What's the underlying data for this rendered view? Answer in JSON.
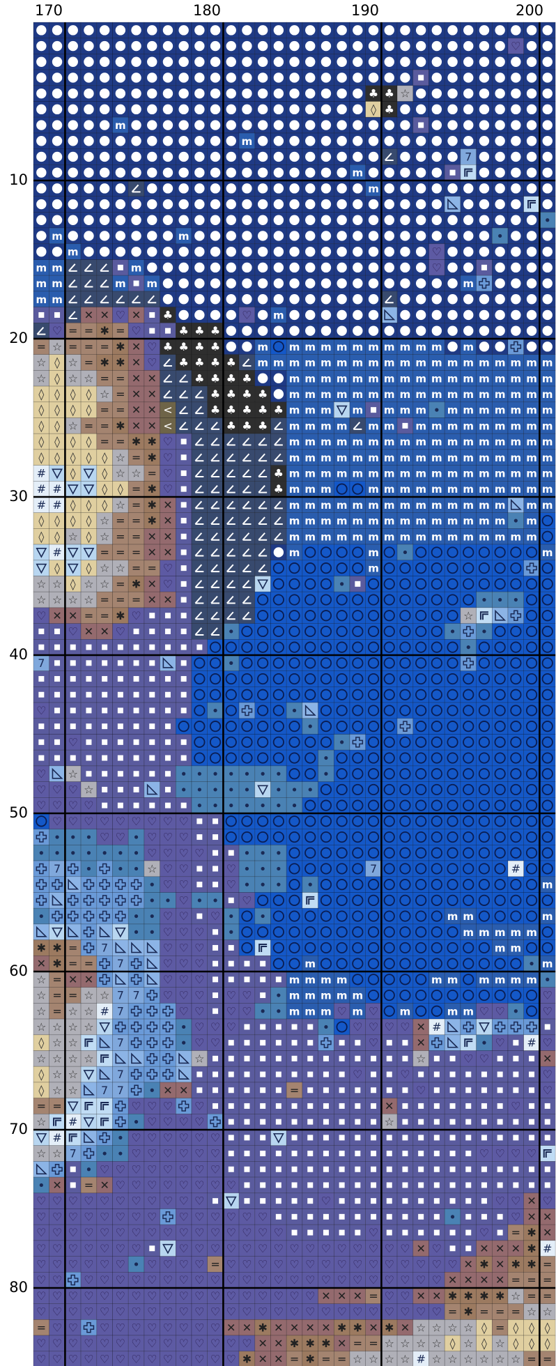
{
  "pattern": {
    "col_start": 168,
    "col_end": 200,
    "row_start": 1,
    "row_end": 86,
    "x_axis_labels": [
      "170",
      "180",
      "190",
      "200"
    ],
    "y_axis_labels": [
      "10",
      "20",
      "30",
      "40",
      "50",
      "60",
      "70",
      "80"
    ],
    "palette": {
      "W": {
        "symbol": "circle-white",
        "bg": "#1f3a85",
        "fg": "#ffffff"
      },
      "M": {
        "symbol": "m",
        "bg": "#2a5dae",
        "fg": "#ffffff"
      },
      "O": {
        "symbol": "circle-outline",
        "bg": "#1458c8",
        "fg": "#0a1d52"
      },
      "Q": {
        "symbol": "dot-square",
        "bg": "#5a5b9e",
        "fg": "#ffffff"
      },
      "H": {
        "symbol": "heart",
        "bg": "#5d5aa3",
        "fg": "#2b1f52"
      },
      "L": {
        "symbol": "hook",
        "bg": "#384a6e",
        "fg": "#ffffff"
      },
      "C": {
        "symbol": "club",
        "bg": "#2e2e2e",
        "fg": "#ffffff"
      },
      "S": {
        "symbol": "star",
        "bg": "#b0b0b8",
        "fg": "#333333"
      },
      "D": {
        "symbol": "diamond",
        "bg": "#e0cfa0",
        "fg": "#333333"
      },
      "E": {
        "symbol": "equals",
        "bg": "#a48470",
        "fg": "#222222"
      },
      "A": {
        "symbol": "asterisk",
        "bg": "#9c7a60",
        "fg": "#222222"
      },
      "X": {
        "symbol": "x",
        "bg": "#946a6e",
        "fg": "#222222"
      },
      "T": {
        "symbol": "triangle-down",
        "bg": "#b8d6f0",
        "fg": "#1a2a55"
      },
      "P": {
        "symbol": "plus-outline",
        "bg": "#6a9ad8",
        "fg": "#1a2a55"
      },
      "R": {
        "symbol": "triangle",
        "bg": "#8cb4e6",
        "fg": "#1a2a55"
      },
      "K": {
        "symbol": "seven",
        "bg": "#80a8dc",
        "fg": "#1a2a55"
      },
      "G": {
        "symbol": "small-dot",
        "bg": "#4a82b4",
        "fg": "#1a2a55"
      },
      "F": {
        "symbol": "corner",
        "bg": "#c0dcf4",
        "fg": "#1a2a55"
      },
      "N": {
        "symbol": "hash",
        "bg": "#e4eef8",
        "fg": "#1a2a55"
      },
      "V": {
        "symbol": "lt",
        "bg": "#6e6448",
        "fg": "#ffffff"
      }
    },
    "rows": [
      "WWWWWWWWWWWWWWWWWWWWWWWWWWWWWWWWW",
      "WWWWWWWWWWWWWWWWWWWWWWWWWWWWWWHWW",
      "WWWWWWWWWWWWWWWWWWWWWWWWWWWWWWWWW",
      "WWWWWWWWWWWWWWWWWWWWWWWWQWWWWWWWW",
      "WWWWWWWWWWWWWWWWWWWWWCCSWWWWWWWWW",
      "WWWWWWWWWWWWWWWWWWWWWDCWWWWWWWWWW",
      "WWWWWMWWWWWWWWWWWWWWWWWWQWWWWWWWW",
      "WWWWWWWWWWWWWMWWWWWWWWWWWWWWWWWWW",
      "WWWWWWWWWWWWWWWWWWWWWWLWWWWKWWWWW",
      "WWWWWWWWWWWWWWWWWWWWMWWWWWQFWWWWW",
      "WWWWWWLWWWWWWWWWWWWWWMWWWWWWWWWWW",
      "WWWWWWWWWWWWWWWWWWWWWWWWWWRWWWWFW",
      "WWWWWWWWWWWWWWWWWWWWWWWWWWWWWWWWG",
      "WMWWWWWWWMWWWWWWWWWWWWWWWWWWWGWWW",
      "WWMWWWWWWWWWWWWWWWWWWWWWWHWWWWWWW",
      "MMLLLQMWWWWWWWWWWWWWWWWWWHWWQWWWW",
      "MMLLLMQMWWWWWWWWWWWWWWWWWWWMPWWWW",
      "MMLLLLLLWWWWWWWWWWWWWWLWWWWWWWWWW",
      "QQLXXHXQCWWWWHWMWWWWWWRWWWWWWWWWW",
      "LHEEAEHQQCCCWWWWWWWWWWWWWWWWWWWWW",
      "ESEEEAXHCCCCWWMOMMMMMMMMMMWMWWPWW",
      "SDSEAAXHLCCCCLMMMMMMMMMMMMMMMMMMM",
      "SDSSEEXXLLCCCCWWMMMMMMMMMMMMMMMMM",
      "DDDDSEXXLLLCCCCWMMMMMMMMMMMMMMMMM",
      "DDDDEEXXVLLCCCCCMMMTMQMMMGMMMMMMM",
      "DDSEEAXXVLLLCCCLMMMMLMMQMMMMMMMMM",
      "DDDDEEAAHQLLLLLLMMMMMMMMMMMMMMMMM",
      "DDDDDSEAHQLLLLLLMMMMMMMMMMMMMMMMM",
      "NTDTDSSEHQLLLLLCMMMMMMMMMMMMMMMMM",
      "NNTTDDEAHQLLLLLCMMMOOMMMMMMMMMMMM",
      "NNDDDSEAXQLLLLLLMMMMMMMMMMMMMMRMM",
      "DDDDSEEAXQLLLLLLMMMMMMMMMMMMMMGMO",
      "DDSDSEEXXQLLLLLLMMMMMMMMMMMMMMMMO",
      "TNTTEEEXXQLLLLLWMOOOOMOGOOOOOOOOM",
      "TDTDSSEEHQLLLLLOOOOOOMOOOOOOOOOPO",
      "SSDSSEAXHQLLLLTOOOOGQOOOOOOOOOOOO",
      "SSSSEEEXXQLLLLOOOOOOOOOOOOOOGGGOO",
      "HXXEEAHQQQLLLLOOOOOOOOOOOOOSFRPOO",
      "QQHXXHQQQQLLGOOOOOOOOOOOOOGPGOOOO",
      "QQQQQQQQQQQOOOOOOOOOOOOOOOOGOOOOO",
      "KQQQQQQQRQOOGOOOOOOOOOOOOOOPOOOOO",
      "QQQQQQQQQQOOOOOOOOOOOOOOOOOOOOOOO",
      "QQQQQQQQQQOOOOOOOOOOOOOOOOOOOOOOO",
      "HQQQQQQQQQOGOPOOGROOOOOOOOOOOOOOO",
      "QQQQQQQQQOOOOOOOOGOOOOOPOOOOOOOOO",
      "QQHQQQQQQQOOOOOOOOOGPOOOOOOOOOOOO",
      "QQQQQQQQQQOOOOOOOOGOOOOOOOOOOOOOO",
      "HRSQQQQQQGGGGGGGOOGOOOOOOOOOOOOOO",
      "HHHSQQQRQGGGGGTGGGOOOOOOOOOOOOOOO",
      "HHHHQQQQQQGGGGGGGOOOOOOOOOOOOOOOO",
      "OHHHHHHHHHQQOOOOOOOOOOOOOOOOOOOOO",
      "PGGGHHGHHHQQOOOOOOOOOOOOOOOOOOOOO",
      "GGGGGGGHHHHQQGGGOOOOOOOOOOOOOOOOO",
      "PKPGPGGSHHQQHGGGOOOOOKOOOOOOOONOO",
      "PPRPPPPGHHQQHGGGOGOOOOOOOOOOOOOOM",
      "PRPPPPPGGHGGQHOOOFOOOOOOOOOOOOOOO",
      "GPPPPPGGHHQHGOGOOOOOOOOOOOMMOOOOM",
      "RTRPRTGGHHHQGOOOOOOOOOOOOOOMMMMMO",
      "AAEPKRRRHHHQQOFOOOOOOOOOOOOOOMMOO",
      "XAEEPKPRHHHQQQQOOMOOOOOOOOOOOOOGM",
      "SEXXPRPRHHHQQQQQMMMMOOOOOMMOMMMMG",
      "SEESSKKPHHHQHHQGMMMMMOOOOOOOOOOOH",
      "SESSNKPPPHHQHHGGMMMHMHOMOOMMHHGOH",
      "SSSSTPPPPGHHHQQQQQGOHHHHXNRPTPPPQ",
      "DSSFRKPPPGHHQQQQQQPQQHQQXPRFGHQNH",
      "SSSSFRRPPRSQQQQQQQQQQQQQSQQHHQQQX",
      "DSSTRKPPPRQQQQQQQQQQHQQHQQQQQQQQH",
      "DSSRKKPGXXQQQQQQEQQQQQQQHQQQQQQQH",
      "EETFFPHHHPHQQQQQQQQQQQXQQQQQQQHQQ",
      "SFNTFPGHHHHPQQQQQQQQQQSQQQQQQQQQQ",
      "TNFRPGHHHHHHQQQTQQQQQQQQQQQQQQQQQ",
      "SSKPGGHHHHHHQQQQQQQQQQQQQQQQHHHHF",
      "RPQGHHHHHHHHQQQQQQQQQQQQQQQQQQQQQ",
      "GXQEXHHHHHHHHQQQQQQQQQQQQQQQQQQQQ",
      "HHHHHHHHHHHQTQQQQQHQQQQQQQQQQHHXH",
      "HHHHHHHHPHHHHHHQQQQQQQQQQQGQQQHXX",
      "HHHHHHHHHHHHHHHHQQQQQHQQQQQQHQEAX",
      "HHHHHHHQTHHHHHHHHHHHHHHHXHQQXXXAN",
      "HHHHHHGHHHHEHHHHHHHHHHHHHHHXAXAAE",
      "HHPHHHHHHHHHHHHHHHHHHHHHHHXXXXEEE",
      "HHHHHHHHHHHHHHHHHHXXXEHHXXAAAASEE",
      "HHHHHHHHHHHHHHHHHHHHHHHHHHEAEEESS",
      "EHHPHHHHHHHHXXAXXXXAAXAXSSSSDEDDD",
      "HHHHHHHHHHHHHHXXAAAXEESSSSDSDSDDD",
      "HHHHHHHHHHHHHAXXEAEESSSSNSSSSSSEE",
      "HHHAHHHHHHHAAEXXAAEEESTSDSDSDDDDD"
    ]
  }
}
